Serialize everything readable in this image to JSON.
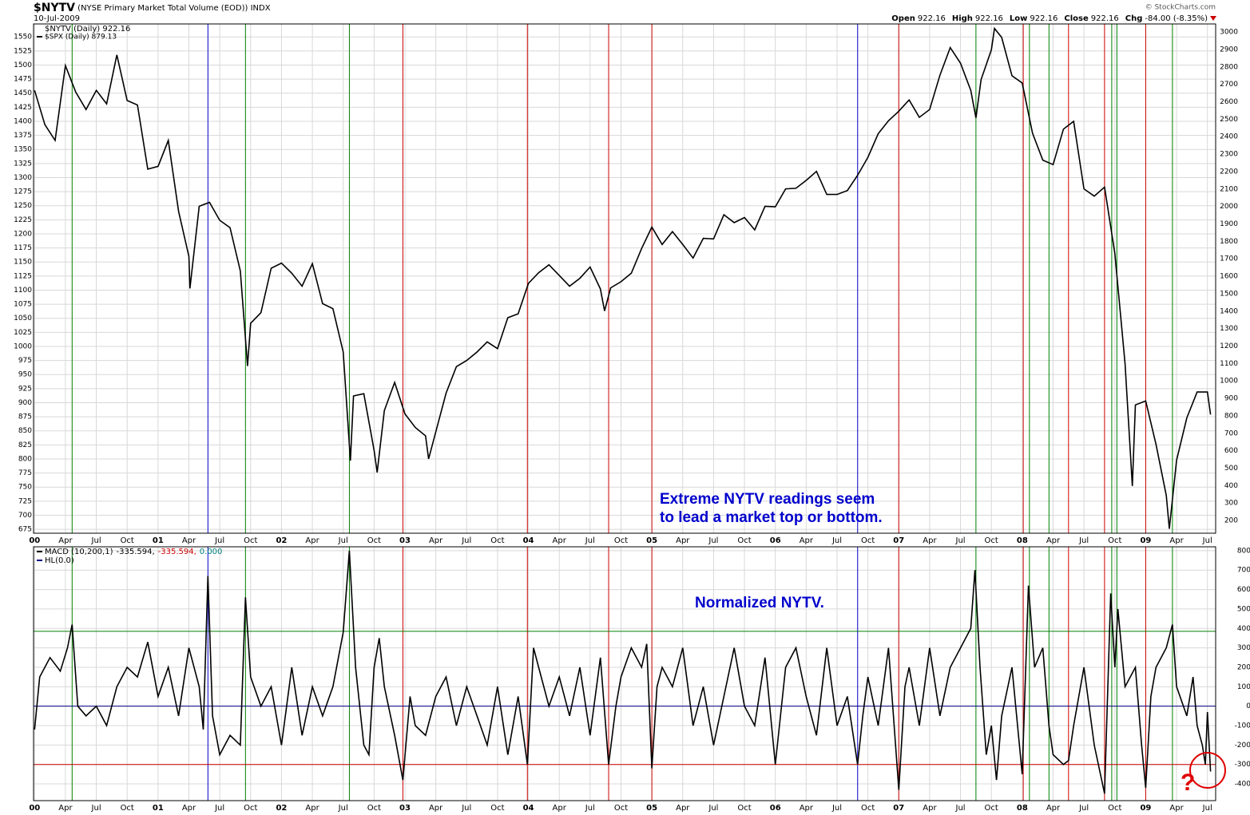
{
  "header": {
    "symbol": "$NYTV",
    "description": "(NYSE Primary Market Total Volume (EOD))",
    "exchange": "INDX",
    "date": "10-Jul-2009",
    "source": "© StockCharts.com",
    "quote": [
      {
        "label": "Open",
        "value": "922.16"
      },
      {
        "label": "High",
        "value": "922.16"
      },
      {
        "label": "Low",
        "value": "922.16"
      },
      {
        "label": "Close",
        "value": "922.16"
      },
      {
        "label": "Chg",
        "value": "-84.00 (-8.35%)"
      }
    ]
  },
  "chart_data": [
    {
      "type": "line",
      "legend_title": "$NYTV (Daily) 922.16",
      "annotation": [
        "Extreme NYTV readings seem",
        "to lead a market top or bottom."
      ],
      "series": [
        {
          "name": "$SPX (Daily) 879.13",
          "color": "#000000",
          "x": [
            0,
            1,
            2,
            3,
            4,
            5,
            6,
            7,
            8,
            9,
            10,
            11,
            12,
            13,
            14,
            15,
            15.1,
            16,
            17,
            18,
            19,
            20,
            20.7,
            21,
            22,
            23,
            24,
            25,
            26,
            27,
            28,
            29,
            30,
            30.7,
            31,
            32,
            33,
            33.3,
            34,
            35,
            36,
            37,
            38,
            38.3,
            39,
            40,
            41,
            42,
            43,
            44,
            45,
            46,
            47,
            48,
            49,
            50,
            51,
            52,
            53,
            54,
            55,
            55.4,
            56,
            57,
            58,
            59,
            60,
            61,
            62,
            63,
            64,
            65,
            66,
            67,
            68,
            69,
            70,
            71,
            72,
            73,
            74,
            75,
            76,
            77,
            78,
            79,
            80,
            81,
            82,
            83,
            84,
            85,
            86,
            87,
            88,
            89,
            90,
            91,
            91.5,
            92,
            93,
            93.3,
            94,
            95,
            96,
            97,
            98,
            99,
            100,
            101,
            102,
            103,
            104,
            105,
            106,
            106.7,
            107,
            108,
            109,
            110,
            110.3,
            111,
            112,
            113,
            114,
            114.3
          ],
          "values": [
            1455,
            1394,
            1366,
            1499,
            1452,
            1421,
            1455,
            1431,
            1518,
            1437,
            1429,
            1315,
            1320,
            1366,
            1240,
            1160,
            1103,
            1249,
            1256,
            1224,
            1211,
            1134,
            965,
            1041,
            1060,
            1139,
            1148,
            1130,
            1107,
            1147,
            1076,
            1067,
            990,
            797,
            912,
            916,
            815,
            776,
            886,
            936,
            880,
            856,
            841,
            800,
            848,
            917,
            964,
            975,
            990,
            1008,
            996,
            1051,
            1058,
            1112,
            1131,
            1145,
            1126,
            1107,
            1121,
            1141,
            1102,
            1063,
            1104,
            1115,
            1130,
            1174,
            1212,
            1181,
            1204,
            1181,
            1157,
            1192,
            1191,
            1234,
            1220,
            1229,
            1207,
            1249,
            1248,
            1280,
            1281,
            1295,
            1311,
            1270,
            1270,
            1277,
            1304,
            1336,
            1378,
            1401,
            1418,
            1438,
            1407,
            1421,
            1482,
            1531,
            1503,
            1455,
            1406,
            1474,
            1527,
            1565,
            1549,
            1481,
            1468,
            1379,
            1331,
            1323,
            1386,
            1400,
            1280,
            1267,
            1283,
            1165,
            969,
            752,
            896,
            903,
            826,
            735,
            676,
            798,
            873,
            919,
            919,
            879
          ]
        }
      ],
      "xlim": [
        -0.1,
        114.8
      ],
      "xticks": [
        {
          "value": 0,
          "label": "00"
        },
        {
          "value": 3,
          "label": "Apr"
        },
        {
          "value": 6,
          "label": "Jul"
        },
        {
          "value": 9,
          "label": "Oct"
        },
        {
          "value": 12,
          "label": "01"
        },
        {
          "value": 15,
          "label": "Apr"
        },
        {
          "value": 18,
          "label": "Jul"
        },
        {
          "value": 21,
          "label": "Oct"
        },
        {
          "value": 24,
          "label": "02"
        },
        {
          "value": 27,
          "label": "Apr"
        },
        {
          "value": 30,
          "label": "Jul"
        },
        {
          "value": 33,
          "label": "Oct"
        },
        {
          "value": 36,
          "label": "03"
        },
        {
          "value": 39,
          "label": "Apr"
        },
        {
          "value": 42,
          "label": "Jul"
        },
        {
          "value": 45,
          "label": "Oct"
        },
        {
          "value": 48,
          "label": "04"
        },
        {
          "value": 51,
          "label": "Apr"
        },
        {
          "value": 54,
          "label": "Jul"
        },
        {
          "value": 57,
          "label": "Oct"
        },
        {
          "value": 60,
          "label": "05"
        },
        {
          "value": 63,
          "label": "Apr"
        },
        {
          "value": 66,
          "label": "Jul"
        },
        {
          "value": 69,
          "label": "Oct"
        },
        {
          "value": 72,
          "label": "06"
        },
        {
          "value": 75,
          "label": "Apr"
        },
        {
          "value": 78,
          "label": "Jul"
        },
        {
          "value": 81,
          "label": "Oct"
        },
        {
          "value": 84,
          "label": "07"
        },
        {
          "value": 87,
          "label": "Apr"
        },
        {
          "value": 90,
          "label": "Jul"
        },
        {
          "value": 93,
          "label": "Oct"
        },
        {
          "value": 96,
          "label": "08"
        },
        {
          "value": 99,
          "label": "Apr"
        },
        {
          "value": 102,
          "label": "Jul"
        },
        {
          "value": 105,
          "label": "Oct"
        },
        {
          "value": 108,
          "label": "09"
        },
        {
          "value": 111,
          "label": "Apr"
        },
        {
          "value": 114,
          "label": "Jul"
        }
      ],
      "ylim": [
        668,
        1573
      ],
      "yticks": [
        675,
        700,
        725,
        750,
        775,
        800,
        825,
        850,
        875,
        900,
        925,
        950,
        975,
        1000,
        1025,
        1050,
        1075,
        1100,
        1125,
        1150,
        1175,
        1200,
        1225,
        1250,
        1275,
        1300,
        1325,
        1350,
        1375,
        1400,
        1425,
        1450,
        1475,
        1500,
        1525,
        1550
      ],
      "y2lim": [
        127,
        3046
      ],
      "y2ticks": [
        200,
        300,
        400,
        500,
        600,
        700,
        800,
        900,
        1000,
        1100,
        1200,
        1300,
        1400,
        1500,
        1600,
        1700,
        1800,
        1900,
        2000,
        2100,
        2200,
        2300,
        2400,
        2500,
        2600,
        2700,
        2800,
        2900,
        3000
      ],
      "grid": true,
      "vlines": [
        {
          "x": 3.65,
          "color": "#008000"
        },
        {
          "x": 16.85,
          "color": "#0000cc"
        },
        {
          "x": 20.5,
          "color": "#008000"
        },
        {
          "x": 30.6,
          "color": "#008000"
        },
        {
          "x": 35.8,
          "color": "#cc0000"
        },
        {
          "x": 47.9,
          "color": "#cc0000"
        },
        {
          "x": 55.8,
          "color": "#cc0000"
        },
        {
          "x": 60,
          "color": "#cc0000"
        },
        {
          "x": 80,
          "color": "#0000cc"
        },
        {
          "x": 84,
          "color": "#cc0000"
        },
        {
          "x": 91.5,
          "color": "#008000"
        },
        {
          "x": 96.1,
          "color": "#cc0000"
        },
        {
          "x": 96.7,
          "color": "#008000"
        },
        {
          "x": 98.6,
          "color": "#008000"
        },
        {
          "x": 100.5,
          "color": "#cc0000"
        },
        {
          "x": 104,
          "color": "#cc0000"
        },
        {
          "x": 104.7,
          "color": "#008000"
        },
        {
          "x": 105.2,
          "color": "#008000"
        },
        {
          "x": 108,
          "color": "#cc0000"
        },
        {
          "x": 110.6,
          "color": "#008000"
        }
      ]
    },
    {
      "type": "line",
      "annotation": "Normalized NYTV.",
      "readout": [
        {
          "text": "-335.594,",
          "color": "#000000"
        },
        {
          "text": "-335.594,",
          "color": "#cc0000"
        },
        {
          "text": "0.000",
          "color": "#008080"
        }
      ],
      "series": [
        {
          "name": "MACD (10,200,1)",
          "color": "#000000",
          "x": [
            0,
            0.5,
            1.5,
            2.5,
            3.2,
            3.65,
            4.2,
            5,
            6,
            7,
            8,
            9,
            10,
            11,
            12,
            13,
            14,
            15,
            16,
            16.4,
            16.85,
            17.3,
            18,
            19,
            20,
            20.5,
            21,
            22,
            23,
            24,
            25,
            26,
            27,
            28,
            29,
            30,
            30.6,
            31.2,
            32,
            32.5,
            33,
            33.5,
            34,
            35,
            35.8,
            36.5,
            37,
            38,
            39,
            40,
            41,
            42,
            43,
            44,
            45,
            46,
            47,
            47.9,
            48.5,
            49,
            50,
            51,
            52,
            53,
            54,
            55,
            55.8,
            56.5,
            57,
            58,
            59,
            59.5,
            60,
            60.5,
            61,
            62,
            63,
            64,
            65,
            66,
            67,
            68,
            69,
            70,
            71,
            72,
            73,
            74,
            75,
            76,
            77,
            78,
            79,
            80,
            80.5,
            81,
            82,
            83,
            84,
            84.6,
            85,
            86,
            87,
            88,
            89,
            90,
            91,
            91.4,
            91.9,
            92.5,
            93,
            93.5,
            94,
            95,
            96,
            96.6,
            97.2,
            98,
            98.6,
            99,
            100,
            100.5,
            101,
            102,
            103,
            104,
            104.6,
            105,
            105.3,
            106,
            107,
            107.6,
            108,
            108.5,
            109,
            110,
            110.6,
            111,
            112,
            112.6,
            113,
            113.5,
            113.8,
            114,
            114.3
          ],
          "values": [
            -120,
            150,
            250,
            180,
            300,
            420,
            0,
            -50,
            0,
            -100,
            100,
            200,
            150,
            330,
            50,
            200,
            -50,
            300,
            100,
            -120,
            670,
            -50,
            -250,
            -150,
            -200,
            560,
            150,
            0,
            100,
            -200,
            200,
            -150,
            100,
            -50,
            100,
            380,
            800,
            200,
            -200,
            -250,
            200,
            350,
            100,
            -150,
            -380,
            50,
            -100,
            -150,
            50,
            150,
            -100,
            100,
            -50,
            -200,
            100,
            -250,
            50,
            -300,
            300,
            200,
            0,
            150,
            -50,
            200,
            -150,
            250,
            -300,
            0,
            150,
            300,
            200,
            320,
            -320,
            100,
            200,
            100,
            300,
            -100,
            100,
            -200,
            50,
            300,
            0,
            -100,
            250,
            -300,
            200,
            300,
            50,
            -150,
            300,
            -100,
            50,
            -300,
            -50,
            150,
            -100,
            300,
            -430,
            100,
            200,
            -100,
            300,
            -50,
            200,
            300,
            400,
            700,
            200,
            -250,
            -100,
            -380,
            -50,
            200,
            -350,
            620,
            200,
            300,
            -100,
            -250,
            -300,
            -280,
            -100,
            200,
            -200,
            -450,
            580,
            200,
            500,
            100,
            200,
            -200,
            -420,
            50,
            200,
            300,
            420,
            100,
            -50,
            150,
            -100,
            -200,
            -300,
            -30,
            -336
          ]
        }
      ],
      "hlines": [
        {
          "value": 385,
          "color": "#008000"
        },
        {
          "value": 0,
          "color": "#000080",
          "name": "HL(0.0)"
        },
        {
          "value": -300,
          "color": "#cc0000"
        }
      ],
      "ylim": [
        -486,
        820
      ],
      "yticks": [
        -400,
        -300,
        -200,
        -100,
        0,
        100,
        200,
        300,
        400,
        500,
        600,
        700,
        800
      ],
      "grid": true
    }
  ]
}
